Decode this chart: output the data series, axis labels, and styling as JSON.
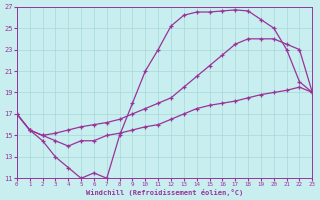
{
  "bg_color": "#c8eef0",
  "grid_color": "#a8d8d8",
  "line_color": "#993399",
  "xlim": [
    0,
    23
  ],
  "ylim": [
    11,
    27
  ],
  "xlabel": "Windchill (Refroidissement éolien,°C)",
  "xtick_vals": [
    0,
    1,
    2,
    3,
    4,
    5,
    6,
    7,
    8,
    9,
    10,
    11,
    12,
    13,
    14,
    15,
    16,
    17,
    18,
    19,
    20,
    21,
    22,
    23
  ],
  "ytick_vals": [
    11,
    13,
    15,
    17,
    19,
    21,
    23,
    25,
    27
  ],
  "line1_x": [
    0,
    1,
    2,
    3,
    4,
    5,
    6,
    7,
    8,
    9,
    10,
    11,
    12,
    13,
    14,
    15,
    16,
    17,
    18,
    19,
    20,
    21,
    22,
    23
  ],
  "line1_y": [
    17.0,
    15.5,
    14.5,
    13.0,
    12.0,
    11.0,
    11.5,
    11.0,
    15.0,
    18.0,
    21.0,
    23.0,
    25.2,
    26.2,
    26.5,
    26.5,
    26.6,
    26.7,
    26.6,
    25.8,
    25.0,
    23.0,
    20.0,
    19.0
  ],
  "line2_x": [
    0,
    1,
    2,
    3,
    4,
    5,
    6,
    7,
    8,
    9,
    10,
    11,
    12,
    13,
    14,
    15,
    16,
    17,
    18,
    19,
    20,
    21,
    22,
    23
  ],
  "line2_y": [
    17.0,
    15.5,
    15.0,
    15.2,
    15.5,
    15.8,
    16.0,
    16.2,
    16.5,
    17.0,
    17.5,
    18.0,
    18.5,
    19.5,
    20.5,
    21.5,
    22.5,
    23.5,
    24.0,
    24.0,
    24.0,
    23.5,
    23.0,
    19.0
  ],
  "line3_x": [
    0,
    1,
    2,
    3,
    4,
    5,
    6,
    7,
    8,
    9,
    10,
    11,
    12,
    13,
    14,
    15,
    16,
    17,
    18,
    19,
    20,
    21,
    22,
    23
  ],
  "line3_y": [
    17.0,
    15.5,
    15.0,
    14.5,
    14.0,
    14.5,
    14.5,
    15.0,
    15.2,
    15.5,
    15.8,
    16.0,
    16.5,
    17.0,
    17.5,
    17.8,
    18.0,
    18.2,
    18.5,
    18.8,
    19.0,
    19.2,
    19.5,
    19.0
  ]
}
